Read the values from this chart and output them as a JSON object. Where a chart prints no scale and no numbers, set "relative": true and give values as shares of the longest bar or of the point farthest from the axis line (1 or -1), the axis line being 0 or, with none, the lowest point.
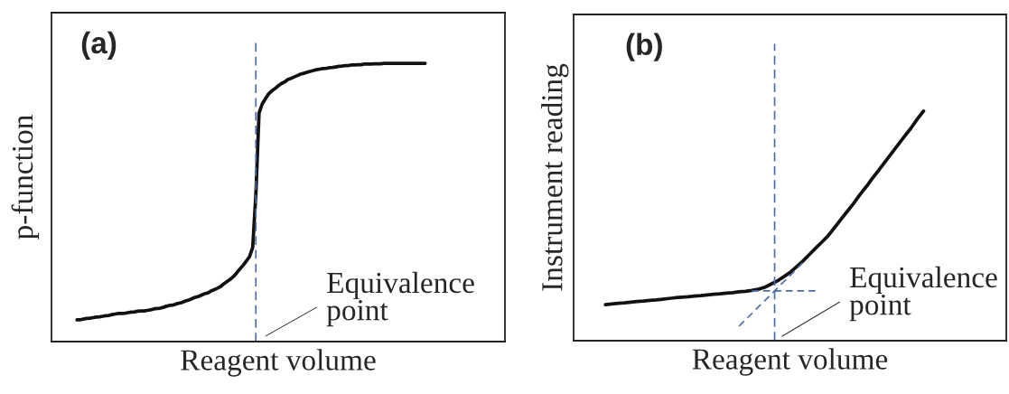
{
  "chart_data": [
    {
      "type": "line",
      "title": "(a)",
      "xlabel": "Reagent volume",
      "ylabel": "p-function",
      "relative": true,
      "tick_labels": false,
      "annotations": [
        "Equivalence\npoint"
      ],
      "categories": [
        null,
        null,
        null,
        null,
        null,
        null,
        null,
        null,
        null,
        null,
        null,
        null,
        null,
        null,
        null,
        null,
        null,
        null,
        null,
        null,
        null,
        null,
        null,
        null,
        null,
        null,
        null,
        null,
        null,
        null,
        null,
        null,
        null,
        null,
        null,
        null,
        null,
        null,
        null,
        null,
        null,
        null,
        null,
        null,
        null,
        null,
        null,
        null,
        null,
        null,
        null,
        null,
        null,
        null,
        null,
        null,
        null,
        null,
        null,
        null,
        null,
        null,
        null,
        null,
        null,
        null,
        null,
        null,
        null,
        null,
        null,
        null,
        null,
        null,
        null,
        null,
        null,
        null,
        null,
        null,
        null,
        null,
        null,
        null,
        null,
        null,
        null,
        null,
        null,
        null,
        null,
        null,
        null,
        null,
        null,
        null,
        null,
        null,
        null,
        null,
        null,
        null,
        null,
        null,
        null,
        null,
        null,
        null,
        null,
        null,
        null,
        null,
        null,
        null,
        null,
        null,
        null,
        null,
        null,
        null,
        null,
        null,
        null,
        null,
        null,
        null,
        null,
        null,
        null,
        null,
        null,
        null,
        null,
        null,
        null,
        null,
        null,
        null,
        null,
        null,
        null,
        null,
        null
      ],
      "series": [
        {
          "color": "#111111",
          "line_style": "solid",
          "values": [
            null,
            null,
            null,
            null,
            null,
            null,
            null,
            null,
            0.078,
            0.078,
            0.081,
            0.083,
            0.084,
            0.086,
            0.088,
            0.089,
            0.091,
            0.093,
            0.094,
            0.097,
            0.099,
            0.101,
            0.101,
            0.102,
            0.104,
            0.106,
            0.107,
            0.109,
            0.11,
            0.11,
            0.112,
            0.114,
            0.117,
            0.119,
            0.12,
            0.123,
            0.127,
            0.13,
            0.131,
            0.135,
            0.138,
            0.141,
            0.146,
            0.149,
            0.154,
            0.159,
            0.162,
            0.167,
            0.172,
            0.175,
            0.182,
            0.187,
            0.192,
            0.198,
            0.208,
            0.216,
            0.224,
            0.234,
            0.247,
            0.261,
            0.274,
            0.289,
            0.305,
            0.338,
            0.529,
            0.821,
            0.854,
            0.873,
            0.89,
            0.901,
            0.909,
            0.919,
            0.927,
            0.933,
            0.942,
            0.946,
            0.951,
            0.956,
            0.961,
            0.964,
            0.968,
            0.971,
            0.974,
            0.977,
            0.979,
            0.981,
            0.982,
            0.984,
            0.985,
            0.987,
            0.989,
            0.99,
            0.992,
            0.992,
            0.994,
            0.994,
            0.995,
            0.995,
            0.997,
            0.997,
            0.997,
            0.998,
            0.998,
            0.998,
            1,
            1,
            1,
            1,
            1,
            1,
            1,
            1,
            1,
            1,
            1,
            1,
            1,
            1,
            null,
            null,
            null,
            null,
            null,
            null,
            null,
            null,
            null,
            null,
            null,
            null,
            null,
            null,
            null,
            null,
            null,
            null,
            null,
            null,
            null,
            null,
            null,
            null,
            null
          ]
        }
      ]
    },
    {
      "type": "line",
      "title": "(b)",
      "xlabel": "Reagent volume",
      "ylabel": "Instrument reading",
      "relative": true,
      "tick_labels": false,
      "annotations": [
        "Equivalence\npoint"
      ],
      "categories": [
        null,
        null,
        null,
        null,
        null,
        null,
        null,
        null,
        null,
        null,
        null,
        null,
        null,
        null,
        null,
        null,
        null,
        null,
        null,
        null,
        null,
        null,
        null,
        null,
        null,
        null,
        null,
        null,
        null,
        null,
        null,
        null,
        null,
        null,
        null,
        null,
        null,
        null,
        null,
        null,
        null,
        null,
        null,
        null,
        null,
        null,
        null,
        null,
        null,
        null,
        null,
        null,
        null,
        null,
        null,
        null,
        null,
        null,
        null,
        null,
        null,
        null,
        null,
        null,
        null,
        null,
        null,
        null,
        null
      ],
      "series": [
        {
          "color": "#111111",
          "line_style": "solid",
          "values": [
            null,
            null,
            null,
            null,
            null,
            0.157,
            0.16,
            0.163,
            0.165,
            0.168,
            0.171,
            0.173,
            0.176,
            0.178,
            0.181,
            0.184,
            0.187,
            0.189,
            0.191,
            0.194,
            0.196,
            0.199,
            0.202,
            0.204,
            0.207,
            0.209,
            0.213,
            0.215,
            0.219,
            0.224,
            0.232,
            0.246,
            0.26,
            0.278,
            0.297,
            0.321,
            0.346,
            0.374,
            0.402,
            0.429,
            0.457,
            0.492,
            0.528,
            0.563,
            0.598,
            0.636,
            0.671,
            0.709,
            0.744,
            0.781,
            0.817,
            0.854,
            0.89,
            0.925,
            0.965,
            1,
            null,
            null,
            null,
            null,
            null,
            null,
            null,
            null,
            null,
            null,
            null,
            null,
            null
          ]
        },
        {
          "color": "#4a6aa8",
          "line_style": "dashed",
          "values": [
            null,
            null,
            null,
            null,
            null,
            null,
            null,
            null,
            null,
            null,
            null,
            null,
            null,
            null,
            null,
            null,
            null,
            null,
            null,
            null,
            null,
            null,
            null,
            null,
            null,
            null,
            null,
            null,
            0.217,
            0.217,
            0.217,
            0.217,
            0.217,
            0.217,
            0.217,
            0.217,
            0.217,
            0.217,
            0.217,
            null,
            null,
            null,
            null,
            null,
            null,
            null,
            null,
            null,
            null,
            null,
            null,
            null,
            null,
            null,
            null,
            null,
            null,
            null,
            null,
            null,
            null,
            null,
            null,
            null,
            null,
            null,
            null,
            null,
            null
          ]
        },
        {
          "color": "#4a6aa8",
          "line_style": "dashed",
          "values": [
            null,
            null,
            null,
            null,
            null,
            null,
            null,
            null,
            null,
            null,
            null,
            null,
            null,
            null,
            null,
            null,
            null,
            null,
            null,
            null,
            null,
            null,
            null,
            null,
            null,
            null,
            0.063,
            0.091,
            0.118,
            0.146,
            0.173,
            0.201,
            0.228,
            0.256,
            0.283,
            0.311,
            0.339,
            null,
            null,
            null,
            null,
            null,
            null,
            null,
            null,
            null,
            null,
            null,
            null,
            null,
            null,
            null,
            null,
            null,
            null,
            null,
            null,
            null,
            null,
            null,
            null,
            null,
            null,
            null,
            null,
            null,
            null,
            null,
            null
          ]
        }
      ]
    }
  ]
}
